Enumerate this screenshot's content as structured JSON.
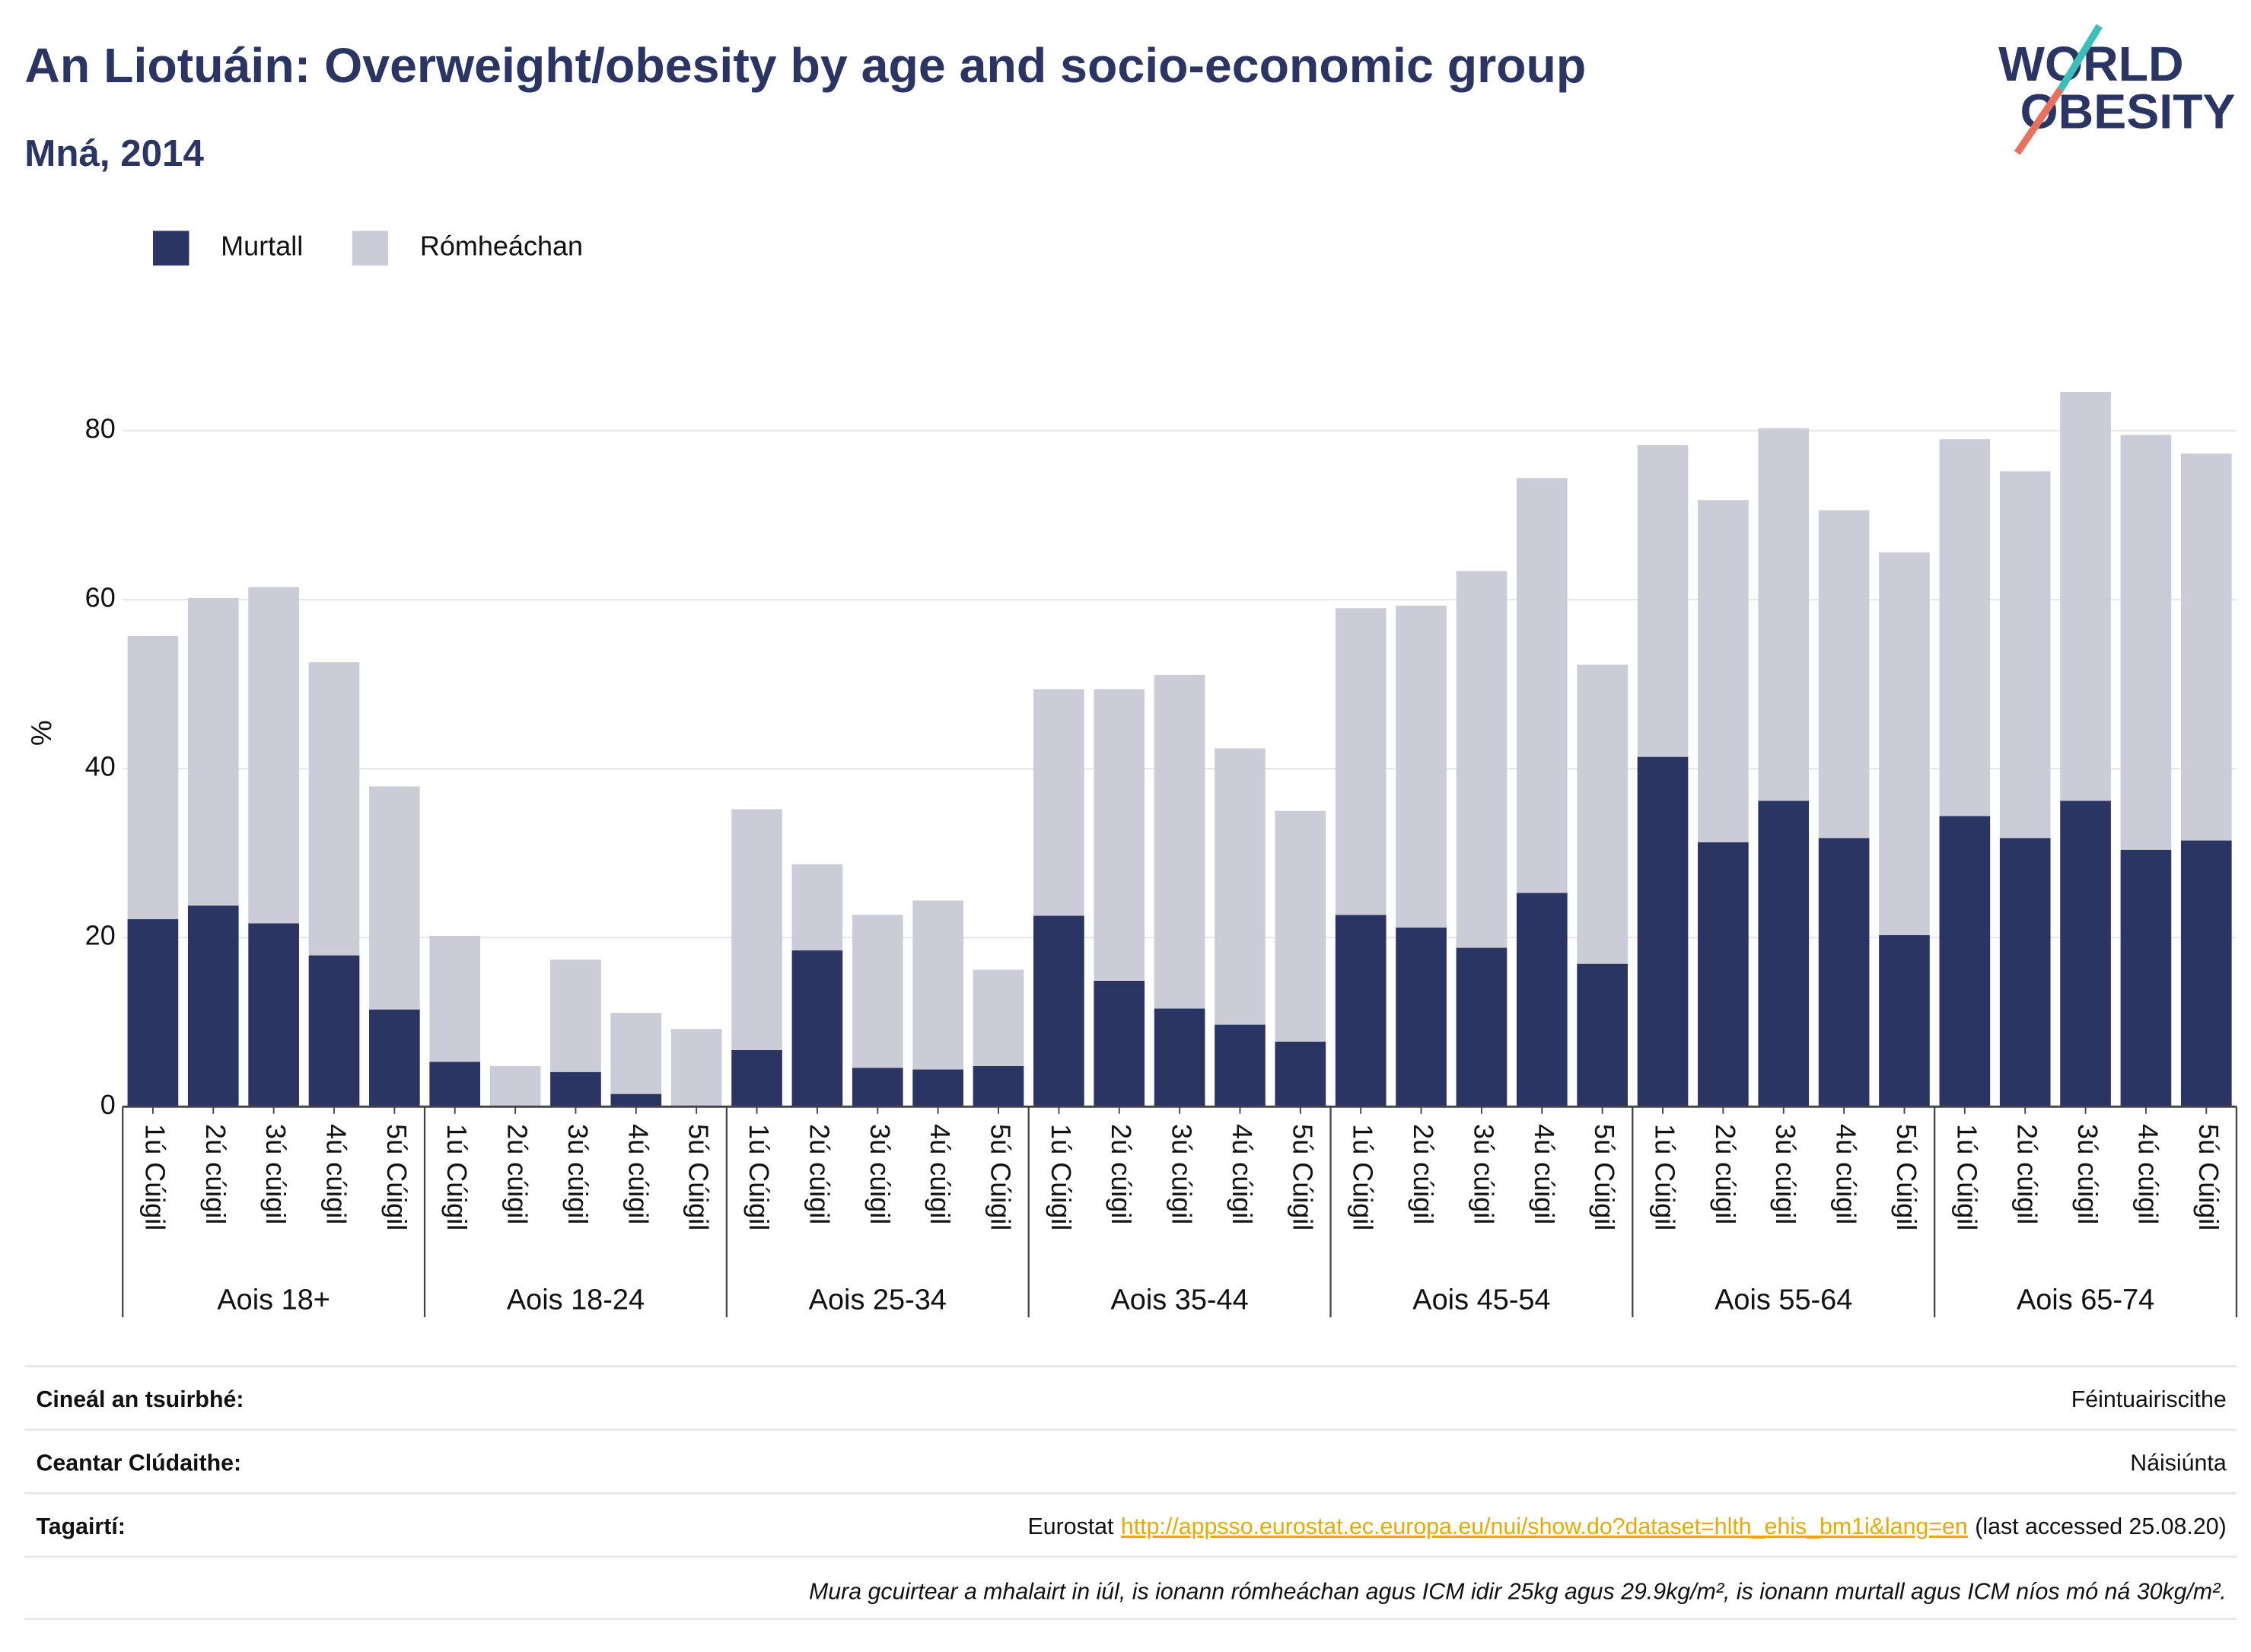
{
  "chart_data": {
    "type": "stacked-bar",
    "title": "An Liotuáin: Overweight/obesity by age and socio-economic group",
    "subtitle": "Mná, 2014",
    "y_label": "%",
    "groups": [
      {
        "name": "Aois 18+",
        "categories": [
          "1ú Cúigil",
          "2ú cúigil",
          "3ú cúigil",
          "4ú cúigil",
          "5ú Cúigil"
        ]
      },
      {
        "name": "Aois 18-24",
        "categories": [
          "1ú Cúigil",
          "2ú cúigil",
          "3ú cúigil",
          "4ú cúigil",
          "5ú Cúigil"
        ]
      },
      {
        "name": "Aois 25-34",
        "categories": [
          "1ú Cúigil",
          "2ú cúigil",
          "3ú cúigil",
          "4ú cúigil",
          "5ú Cúigil"
        ]
      },
      {
        "name": "Aois 35-44",
        "categories": [
          "1ú Cúigil",
          "2ú cúigil",
          "3ú cúigil",
          "4ú cúigil",
          "5ú Cúigil"
        ]
      },
      {
        "name": "Aois 45-54",
        "categories": [
          "1ú Cúigil",
          "2ú cúigil",
          "3ú cúigil",
          "4ú cúigil",
          "5ú Cúigil"
        ]
      },
      {
        "name": "Aois 55-64",
        "categories": [
          "1ú Cúigil",
          "2ú cúigil",
          "3ú cúigil",
          "4ú cúigil",
          "5ú Cúigil"
        ]
      },
      {
        "name": "Aois 65-74",
        "categories": [
          "1ú Cúigil",
          "2ú cúigil",
          "3ú cúigil",
          "4ú cúigil",
          "5ú Cúigil"
        ]
      }
    ],
    "series": [
      {
        "name": "Murtall",
        "color": "#2a3563",
        "values": [
          22.2,
          23.8,
          21.7,
          17.9,
          11.5,
          5.3,
          0,
          4.1,
          1.5,
          0,
          6.7,
          18.5,
          4.6,
          4.4,
          4.8,
          22.6,
          14.9,
          11.6,
          9.7,
          7.7,
          22.7,
          21.2,
          18.8,
          25.3,
          16.9,
          41.4,
          31.3,
          36.2,
          31.8,
          20.3,
          34.4,
          31.8,
          36.2,
          30.4,
          31.5
        ]
      },
      {
        "name": "Rómheáchan",
        "color": "#cbccd8",
        "values": [
          33.5,
          36.4,
          39.8,
          34.7,
          26.4,
          14.9,
          4.8,
          13.3,
          9.6,
          9.2,
          28.5,
          10.2,
          18.1,
          20.0,
          11.4,
          26.8,
          34.5,
          39.5,
          32.7,
          27.3,
          36.3,
          38.1,
          44.6,
          49.1,
          35.4,
          36.9,
          40.5,
          44.1,
          38.8,
          45.3,
          44.6,
          43.4,
          48.4,
          49.1,
          45.8
        ]
      }
    ],
    "ylim": [
      0,
      90
    ],
    "yticks": [
      0,
      20,
      40,
      60,
      80
    ],
    "grid": true,
    "legend": "top-left"
  },
  "logo": {
    "line1": "WORLD",
    "line2": "OBESITY"
  },
  "footer": {
    "rows": [
      {
        "label": "Cineál an tsuirbhé:",
        "value": "Féintuairiscithe"
      },
      {
        "label": "Ceantar Clúdaithe:",
        "value": "Náisiúnta"
      }
    ],
    "references": {
      "label": "Tagairtí:",
      "source": "Eurostat",
      "link": "http://appsso.eurostat.ec.europa.eu/nui/show.do?dataset=hlth_ehis_bm1i&lang=en",
      "accessed": "(last accessed 25.08.20)"
    },
    "note": "Mura gcuirtear a mhalairt in iúl, is ionann rómheáchan agus ICM idir 25kg agus 29.9kg/m², is ionann murtall agus ICM níos mó ná 30kg/m²."
  }
}
